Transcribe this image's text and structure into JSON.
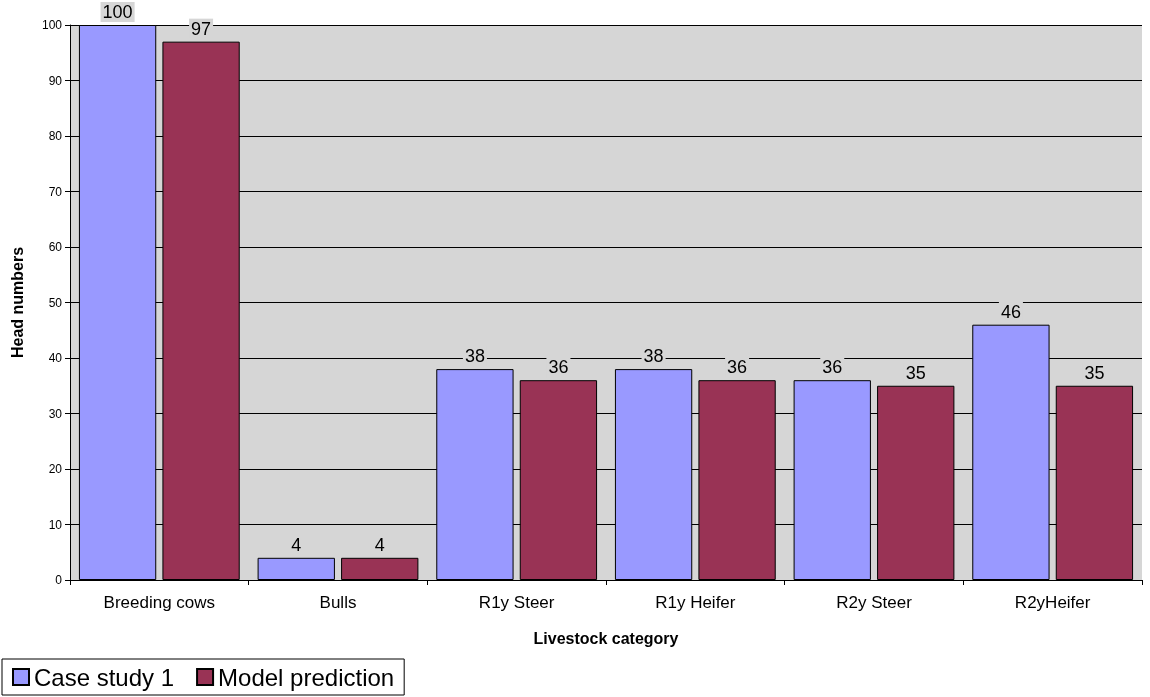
{
  "chart_data": {
    "type": "bar",
    "xlabel": "Livestock category",
    "ylabel": "Head numbers",
    "categories": [
      "Breeding cows",
      "Bulls",
      "R1y Steer",
      "R1y Heifer",
      "R2y Steer",
      "R2yHeifer"
    ],
    "series": [
      {
        "name": "Case study 1",
        "color": "#9999ff",
        "values": [
          100,
          4,
          38,
          38,
          36,
          46
        ]
      },
      {
        "name": "Model prediction",
        "color": "#993355",
        "values": [
          97,
          4,
          36,
          36,
          35,
          35
        ]
      }
    ],
    "ylim": [
      0,
      100
    ],
    "yticks": [
      0,
      10,
      20,
      30,
      40,
      50,
      60,
      70,
      80,
      90,
      100
    ],
    "grid": "y",
    "legend": "bottom left",
    "data_labels": true
  }
}
